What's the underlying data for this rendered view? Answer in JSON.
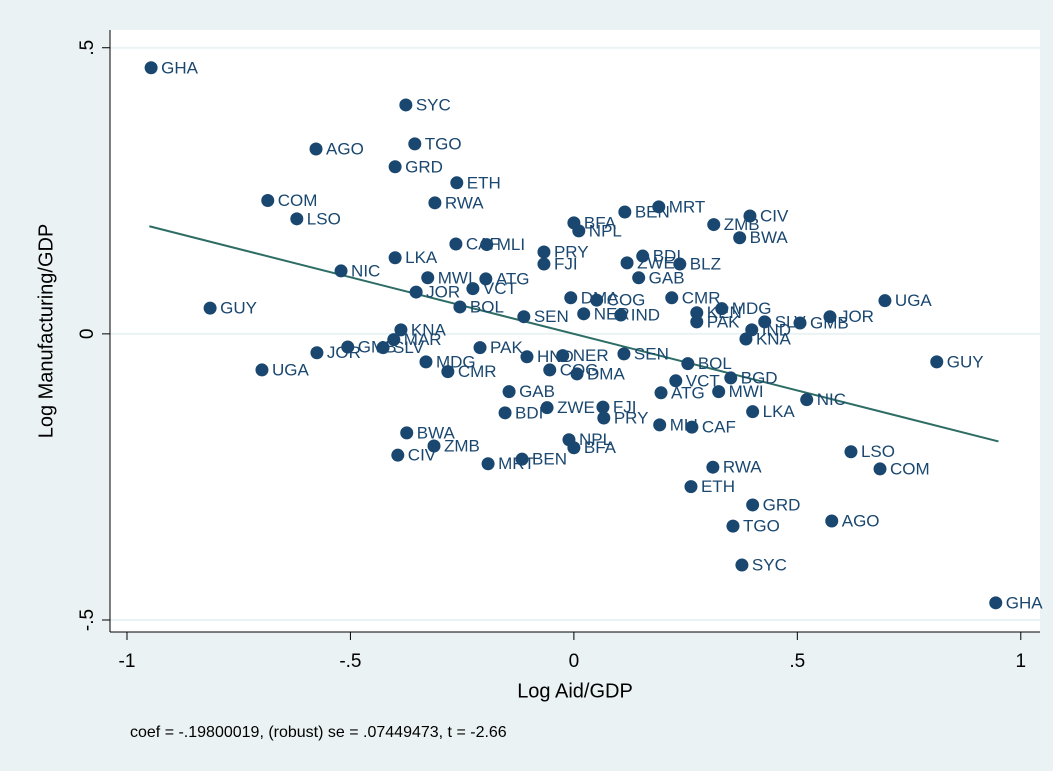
{
  "chart_data": {
    "type": "scatter",
    "x_label": "Log Aid/GDP",
    "y_label": "Log Manufacturing/GDP",
    "note": "coef = -.19800019, (robust) se = .07449473, t = -2.66",
    "xlim": [
      -1.038,
      1.043
    ],
    "ylim": [
      -0.521,
      0.531
    ],
    "xticks": [
      -1,
      {
        "value": -0.5,
        "label": "-.5"
      },
      0,
      {
        "value": 0.5,
        "label": ".5"
      },
      1
    ],
    "yticks": [
      {
        "value": -0.5,
        "label": "-.5"
      },
      0,
      {
        "value": 0.5,
        "label": ".5"
      }
    ],
    "grid": true,
    "color": "#1a476f",
    "x": [
      -0.946,
      -0.376,
      -0.356,
      -0.577,
      -0.4,
      -0.262,
      -0.685,
      -0.311,
      -0.62,
      0,
      0.011,
      0.114,
      0.19,
      0.394,
      0.313,
      0.371,
      -0.264,
      -0.195,
      -0.067,
      -0.4,
      0.154,
      -0.067,
      0.119,
      0.237,
      -0.521,
      -0.327,
      -0.197,
      0.145,
      -0.353,
      -0.226,
      -0.255,
      -0.007,
      0.051,
      0.219,
      0.331,
      0.696,
      -0.814,
      -0.112,
      0.022,
      0.105,
      0.275,
      0.275,
      0.427,
      0.506,
      0.573,
      0.398,
      0.385,
      -0.387,
      -0.403,
      -0.427,
      -0.506,
      -0.575,
      -0.698,
      -0.331,
      -0.21,
      -0.282,
      -0.105,
      -0.025,
      -0.054,
      0.007,
      0.112,
      0.255,
      0.228,
      0.351,
      0.324,
      0.195,
      -0.145,
      -0.154,
      -0.06,
      0.065,
      0.067,
      0.192,
      0.264,
      0.4,
      0.521,
      0.812,
      -0.374,
      -0.313,
      -0.394,
      -0.011,
      0,
      -0.116,
      -0.192,
      0.62,
      0.685,
      0.311,
      0.262,
      0.4,
      0.577,
      0.356,
      0.376,
      0.944
    ],
    "values": [
      0.465,
      0.4,
      0.332,
      0.323,
      0.292,
      0.264,
      0.233,
      0.229,
      0.201,
      0.194,
      0.18,
      0.213,
      0.222,
      0.206,
      0.191,
      0.168,
      0.157,
      0.156,
      0.143,
      0.133,
      0.136,
      0.122,
      0.124,
      0.122,
      0.11,
      0.098,
      0.096,
      0.098,
      0.073,
      0.079,
      0.047,
      0.063,
      0.059,
      0.063,
      0.044,
      0.058,
      0.045,
      0.03,
      0.035,
      0.033,
      0.037,
      0.021,
      0.021,
      0.019,
      0.03,
      0.007,
      -0.009,
      0.007,
      -0.01,
      -0.024,
      -0.023,
      -0.033,
      -0.063,
      -0.049,
      -0.024,
      -0.066,
      -0.04,
      -0.038,
      -0.063,
      -0.07,
      -0.035,
      -0.052,
      -0.082,
      -0.077,
      -0.101,
      -0.103,
      -0.101,
      -0.138,
      -0.129,
      -0.128,
      -0.147,
      -0.159,
      -0.163,
      -0.136,
      -0.115,
      -0.049,
      -0.173,
      -0.196,
      -0.212,
      -0.185,
      -0.199,
      -0.219,
      -0.227,
      -0.206,
      -0.236,
      -0.233,
      -0.267,
      -0.299,
      -0.327,
      -0.336,
      -0.404,
      -0.47
    ],
    "point_labels": [
      "GHA",
      "SYC",
      "TGO",
      "AGO",
      "GRD",
      "ETH",
      "COM",
      "RWA",
      "LSO",
      "BFA",
      "NPL",
      "BEN",
      "MRT",
      "CIV",
      "ZMB",
      "BWA",
      "CAF",
      "MLI",
      "PRY",
      "LKA",
      "BDI",
      "FJI",
      "ZWE",
      "BLZ",
      "NIC",
      "MWI",
      "ATG",
      "GAB",
      "JOR",
      "VCT",
      "BOL",
      "DMA",
      "COG",
      "CMR",
      "MDG",
      "UGA",
      "GUY",
      "SEN",
      "NER",
      "IND",
      "KEN",
      "PAK",
      "SLV",
      "GMB",
      "JOR",
      "IND",
      "KNA",
      "KNA",
      "MAR",
      "SLV",
      "GMB",
      "JOR",
      "UGA",
      "MDG",
      "PAK",
      "CMR",
      "HND",
      "NER",
      "COG",
      "DMA",
      "SEN",
      "BOL",
      "VCT",
      "BGD",
      "MWI",
      "ATG",
      "GAB",
      "BDI",
      "ZWE",
      "FJI",
      "PRY",
      "MLI",
      "CAF",
      "LKA",
      "NIC",
      "GUY",
      "BWA",
      "ZMB",
      "CIV",
      "NPL",
      "BFA",
      "BEN",
      "MRT",
      "LSO",
      "COM",
      "RWA",
      "ETH",
      "GRD",
      "AGO",
      "TGO",
      "SYC",
      "GHA"
    ],
    "fit": {
      "color": "#2d6d66",
      "x": [
        -0.95,
        0.95
      ],
      "values": [
        0.188,
        -0.188
      ]
    }
  }
}
